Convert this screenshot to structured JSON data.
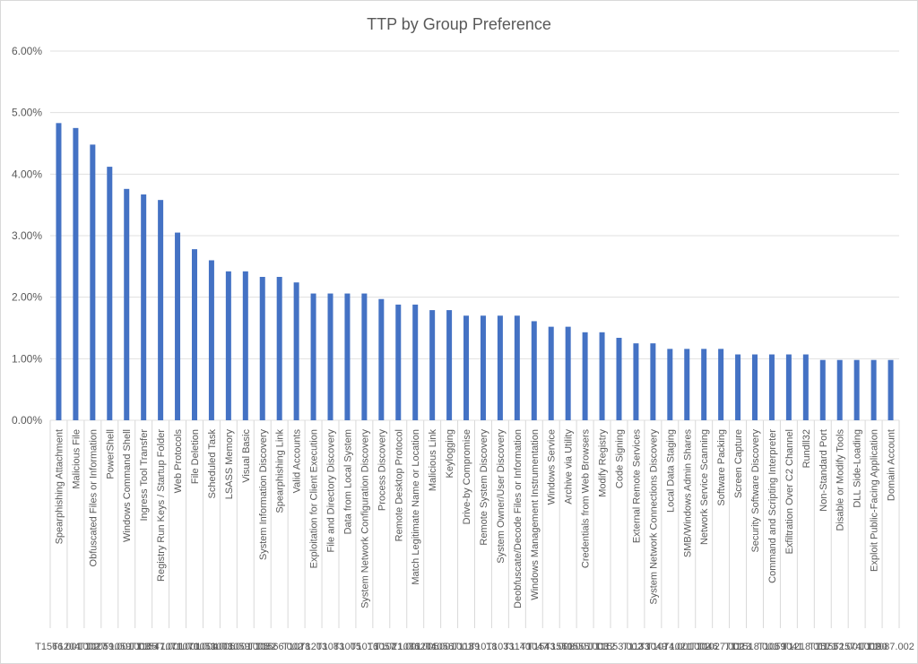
{
  "chart_data": {
    "type": "bar",
    "title": "TTP by Group Preference",
    "xlabel": "",
    "ylabel": "",
    "ylim": [
      0,
      6
    ],
    "y_unit": "%",
    "yticks": [
      "0.00%",
      "1.00%",
      "2.00%",
      "3.00%",
      "4.00%",
      "5.00%",
      "6.00%"
    ],
    "grid": true,
    "legend": "none",
    "bar_color": "#4472c4",
    "categories": [
      "Spearphishing Attachment",
      "Malicious File",
      "Obfuscated Files or Information",
      "PowerShell",
      "Windows Command Shell",
      "Ingress Tool Transfer",
      "Registry Run Keys / Startup Folder",
      "Web Protocols",
      "File Deletion",
      "Scheduled Task",
      "LSASS Memory",
      "Visual Basic",
      "System Information Discovery",
      "Spearphishing Link",
      "Valid Accounts",
      "Exploitation for Client Execution",
      "File and Directory Discovery",
      "Data from Local System",
      "System Network Configuration Discovery",
      "Process Discovery",
      "Remote Desktop Protocol",
      "Match Legitimate Name or Location",
      "Malicious Link",
      "Keylogging",
      "Drive-by Compromise",
      "Remote System Discovery",
      "System Owner/User Discovery",
      "Deobfuscate/Decode Files or Information",
      "Windows Management Instrumentation",
      "Windows Service",
      "Archive via Utility",
      "Credentials from Web Browsers",
      "Modify Registry",
      "Code Signing",
      "External Remote Services",
      "System Network Connections Discovery",
      "Local Data Staging",
      "SMB/Windows Admin Shares",
      "Network Service Scanning",
      "Software Packing",
      "Screen Capture",
      "Security Software Discovery",
      "Command and Scripting Interpreter",
      "Exfiltration Over C2 Channel",
      "Rundll32",
      "Non-Standard Port",
      "Disable or Modify Tools",
      "DLL Side-Loading",
      "Exploit Public-Facing Application",
      "Domain Account"
    ],
    "codes": [
      "T1566.001",
      "T1204.002",
      "T1027",
      "T1059.001",
      "T1059.003",
      "T1105",
      "T1547.001",
      "T1071.001",
      "T1070.004",
      "T1053.005",
      "T1003.001",
      "T1059.005",
      "T1082",
      "T1566.002",
      "T1078",
      "T1203",
      "T1083",
      "T1005",
      "T1016",
      "T1057",
      "T1021.001",
      "T1036.005",
      "T1204.001",
      "T1056.001",
      "T1189",
      "T1018",
      "T1033",
      "T1140",
      "T1047",
      "T1543.003",
      "T1560.001",
      "T1555.003",
      "T1112",
      "T1553.002",
      "T1133",
      "T1049",
      "T1074.001",
      "T1021.002",
      "T1046",
      "T1027.002",
      "T1113",
      "T1518.001",
      "T1059",
      "T1041",
      "T1218.011",
      "T1571",
      "T1562.001",
      "T1574.002",
      "T1190",
      "T1087.002"
    ],
    "values": [
      4.83,
      4.75,
      4.48,
      4.12,
      3.76,
      3.67,
      3.58,
      3.05,
      2.78,
      2.6,
      2.42,
      2.42,
      2.33,
      2.33,
      2.24,
      2.06,
      2.06,
      2.06,
      2.06,
      1.97,
      1.88,
      1.88,
      1.79,
      1.79,
      1.7,
      1.7,
      1.7,
      1.7,
      1.61,
      1.52,
      1.52,
      1.43,
      1.43,
      1.34,
      1.25,
      1.25,
      1.16,
      1.16,
      1.16,
      1.16,
      1.07,
      1.07,
      1.07,
      1.07,
      1.07,
      0.98,
      0.98,
      0.98,
      0.98,
      0.98
    ]
  }
}
